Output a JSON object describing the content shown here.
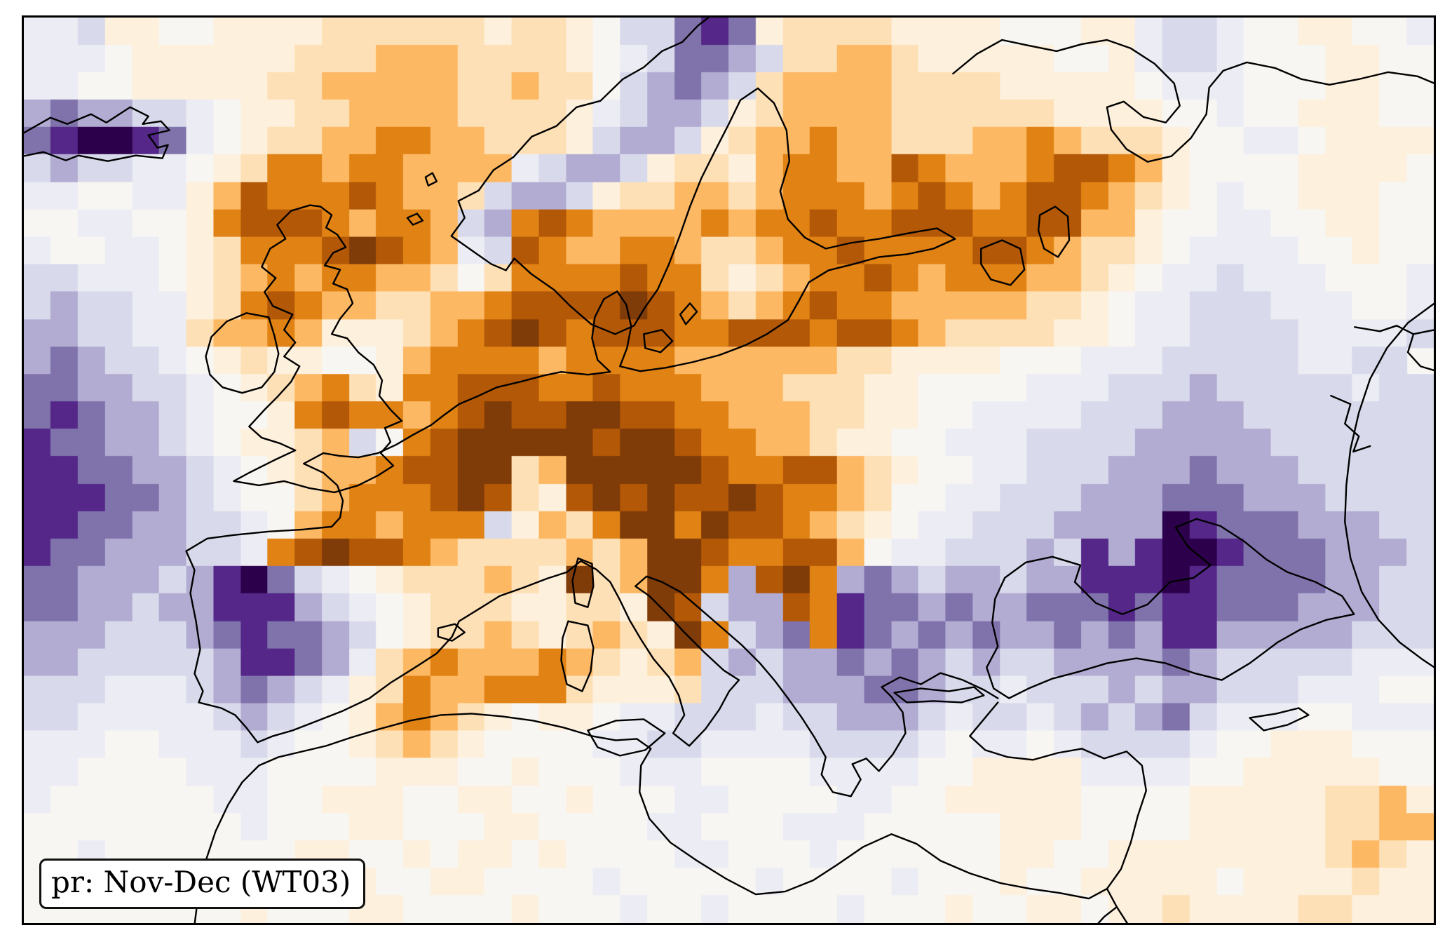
{
  "figure": {
    "label": "pr: Nov-Dec (WT03)"
  },
  "chart_data": {
    "type": "heatmap",
    "title": "pr: Nov-Dec (WT03)",
    "annotation_box": "pr: Nov-Dec (WT03)",
    "grid_cols": 52,
    "grid_rows": 33,
    "legend": "none visible",
    "palette": {
      "a": "#2d004b",
      "b": "#542788",
      "c": "#8073ac",
      "d": "#b2abd2",
      "e": "#d8daeb",
      "f": "#ececf4",
      "g": "#f8f6f3",
      "h": "#fdf0dd",
      "i": "#fee0b6",
      "j": "#fdb863",
      "k": "#e08214",
      "l": "#b35806",
      "m": "#7f3b08"
    },
    "cells": [
      "ffehhgghhhhiiiiiihiihgeecbchiiiihhhhggghhfeefgghhggf",
      "fffghhhhhhiiijjjiiiihgfeccdeiijjihhhhhgghfeefggghhgg",
      "ffgghhhhhiijjjjjiijiigedcdeijjjjiiiihhhhhgfffggghhgg",
      "dcddeefghhiijjjjiiiihfeddehijjjjiiiiiihhhhggfgghhhgg",
      "cbaabcfghiijjkkjjiiiheddehijjkjjiiijjkjiiihggffghhhh",
      "edeeffghikkjkkjjjjfeddehiihjkkjjlkjjjkllkjhgggghhhhg",
      "ffggffhjlkkklkjjieddehiijjijkkkjklkjkllkjihgfgghhhgg",
      "ggffgghklllkjkkjedklkjjjjkjkklkklllkklljjhggffgghhgg",
      "fggffghikkklmlkjfelkjjkkjiijkklkkkkllkjiihgffffgghgg",
      "eefffghijkjkkjjigikkkklkkihijkklkjkkkjjihgffefffgggf",
      "edeeffhiklkjjiijjkllllmlkjijklkkjjjjjiihgffeeefffggf",
      "ddeeffijjkjhhhijklmlklllkklllkllkjiiiihhgffeeeeffffe",
      "dcdeefghihhgghjkkkkjkkkkjjjjjjiihhhhgggfffeeeeeffee",
      "ccddeefghijkihkklllkklkkkjjjiiihhggggfffeeedeeeeefee",
      "cbcddefgghklkkjklmllmmllkkjjjiihhggffffeeedddeeeeeee",
      "bccddefghhijegklmmmmmlmmlkkjjihhggfffeeeedddddeeeeee",
      "bbccddefghijjkllmmijmmmmmlkklljihggffeeedddcdddeeeee",
      "bbbccdefggijkkklmlihlmlmllmlkkjiggffeeedddcccdddeeee",
      "bbccddeefgjkkjkkkehjikmmkmllkjihgffeeeddddabcccdddee",
      "bccdddeefklmllkjiiiijijmmlkklljgffeeedebdbaabcccddde",
      "ccdddedbacefghiiijihmijmmkdlmkdcdeddeddbbbabccccddee",
      "ccddeddbbbdefghiiihhiihmleddlkbccdcddcccbcbbcccdddee",
      "dddeeedcbccdeghiijihijihmkedckbcdcdcddcdcdbbdddddeee",
      "ddeeeeedbbcdfijkjjjkjihijededdcdcdedeeddddcdeeeeefff",
      "eeefffedcdefhikjjkkkihhhieeedddccdeefeeededdeeefffgg",
      "eefffffedefghjkjihghhgffeeefeedddefeefededcefffggfff",
      "fffggfffefgghijihggggffeeffffeeeefgffgfeeeefgghhhggg",
      "ffggggfffgggghhhgghgggfffggggffffgghhhhffffgghhhhhgg",
      "fggggggffgghhhgghhgghgggffggggffgghhhhhgggghhhhhiijh",
      "ggggggggfggghhggghhggggffgggfffggggghhhgggghhhhhiijji",
      "ggfggggggghhgghghhghggggffgggfgggggghhgghhhhhhhhijih",
      "ggggfgghggghhgghhggggfgggggfggggfggghgghhhhhghhhhihh",
      "gggggggghggghhgggghgggfggfggggfggghgghhghhihhhhiihhh"
    ]
  },
  "map": {
    "region": "Europe / North Africa / Middle East",
    "coastlines": [
      "M -6 168 L 38 143 L 62 152 L 96 138 L 118 150 L 152 128 L 178 141 L 170 152 L 196 148 L 208 161 L 178 168 L 191 186 L 206 182 L 198 201 L 160 197 L 120 205 L 78 197 L 60 204 L 28 192 L -6 199",
      "M 668 352 L 638 331 L 611 312 L 630 286 L 621 262 L 650 247 L 671 218 L 700 199 L 726 170 L 761 155 L 790 128 L 824 119 L 856 88 L 886 71 L 912 48 L 941 35 L 963 12 L 986 -6",
      "M 668 352 L 689 361 L 701 344 L 725 366 L 758 389 L 781 412 L 811 438 L 845 452 L 872 440 L 887 415 L 906 388 L 922 352 L 938 310 L 952 270 L 968 230 L 988 190 L 1008 151 L 1024 118 L 1049 101 L 1072 122 L 1090 161 L 1094 205 L 1081 248 L 1092 288 L 1116 314 L 1146 330 L 1181 322 L 1222 316 L 1264 308 L 1305 301 L 1331 316 L 1300 330 L 1262 338 L 1222 342 L 1186 352 L 1150 361 L 1122 378 L 1108 404 L 1092 432 L 1062 452 L 1031 468 L 994 482 L 956 492 L 918 500 L 881 505 L 852 498 L 862 472 L 868 441 L 861 410 L 848 391 L 829 402 L 816 428 L 812 458 L 820 489 L 838 506 L 806 510 L 768 506 L 744 511 L 710 520 L 676 528 L 648 541 L 622 552 L 600 568 L 582 582 L 556 596 L 532 610 L 506 622 L 478 628 L 452 626 L 428 622 L 400 637 L 428 650 L 448 668 L 456 690 L 452 714 L 440 727 L 400 731 L 350 734 L 300 739 L 262 744 L 232 762 L 244 789 L 238 822 L 246 862 L 252 902 L 244 937 L 256 962 L 250 978 L 282 986 L 302 996 L 318 1014 L 334 1035 L 356 1026 L 384 1018 L 420 1004 L 456 990 L 494 972 L 524 950 L 556 930 L 590 908 L 612 884 L 622 862 L 648 846 L 680 826 L 714 814 L 748 801 L 776 792 L 796 776 L 818 788 L 838 806 L 852 832 L 866 861 L 882 888 L 900 916 L 922 942 L 936 968 L 944 996 L 928 1022 L 951 1040 L 974 1016 L 994 988 L 1008 962 L 1022 946 L 1000 932 L 972 906 L 944 878 L 918 850 L 894 826 L 874 812 L 890 798 L 912 806 L 938 820 L 966 844 L 996 870 L 1026 896 L 1052 922 L 1074 948 L 1092 972 L 1112 1000 L 1130 1028 L 1146 1056 L 1140 1081 L 1156 1106 L 1182 1112 L 1196 1088 L 1184 1066 L 1204 1058 L 1222 1076 L 1242 1052 L 1260 1022 L 1256 992 L 1240 970 L 1226 956 L 1252 942 L 1282 952 L 1310 936 L 1342 946 L 1372 960 L 1392 972",
      "M 1408 972 L 1436 958 L 1470 944 L 1508 934 L 1548 922 L 1590 915 L 1632 922 L 1672 936 L 1712 946 L 1752 922 L 1792 892 L 1824 874 L 1862 860 L 1901 852 L 1884 826 L 1846 806 L 1806 792 L 1776 774 L 1744 748 L 1710 726 L 1676 716 L 1646 728 L 1664 756 L 1696 782 L 1672 800 L 1638 806 L 1606 838 L 1570 852 L 1532 836 L 1502 806 L 1510 782 L 1470 770 L 1432 778 L 1402 800 L 1388 830 L 1384 864 L 1392 898 L 1376 928 L 1386 958 L 1408 972",
      "M 1392 978 L 1372 1002 L 1352 1026 L 1374 1046 L 1406 1056 L 1442 1060 L 1478 1050 L 1512 1044 L 1544 1058 L 1576 1048 L 1598 1068 L 1604 1104 L 1592 1140 L 1582 1178 L 1568 1216 L 1548 1244 L 1522 1258 L 1480 1250 L 1438 1244 L 1396 1236 L 1352 1222 L 1310 1204 L 1276 1180 L 1240 1166 L 1200 1184 L 1162 1210 L 1128 1232 L 1088 1248 L 1046 1252 L 1004 1230 L 962 1204 L 924 1178 L 894 1144 L 880 1106 L 882 1068 L 896 1044 L 876 1030 L 846 1032 L 812 1026 L 772 1014 L 728 1004 L 684 998 L 640 994 L 596 996 L 552 1004 L 508 1016 L 468 1028 L 432 1040 L 398 1048 L 364 1056 L 336 1068 L 312 1092 L 292 1124 L 274 1162 L 260 1204 L 250 1248 L 244 1295",
      "M 1548 1244 L 1562 1270 L 1578 1295 M 1562 1270 L 1544 1284 L 1534 1295",
      "M 409 268 L 382 276 L 362 296 L 374 316 L 352 330 L 340 356 L 360 372 L 344 392 L 356 412 L 384 424 L 372 446 L 388 464 L 372 484 L 394 498 L 382 520 L 362 542 L 344 560 L 322 584 L 340 600 L 366 608 L 388 618 L 358 632 L 322 650 L 300 662 L 336 668 L 372 662 L 408 672 L 444 678 L 478 668 L 506 654 L 528 640 L 510 622 L 524 606 L 516 586 L 540 576 L 524 560 L 508 540 L 512 518 L 500 496 L 478 478 L 462 458 L 440 452 L 452 430 L 470 408 L 462 388 L 442 380 L 452 360 L 430 354 L 442 336 L 460 328 L 448 310 L 432 300 L 440 282 L 424 270 L 409 268",
      "M 350 428 L 318 422 L 290 434 L 268 456 L 260 484 L 266 510 L 284 528 L 312 536 L 340 528 L 358 506 L 364 480 L 358 454 L 350 428",
      "M 806 1018 L 846 1004 L 886 1002 L 916 1022 L 888 1046 L 852 1054 L 820 1042 L 806 1018",
      "M 778 862 L 806 868 L 814 900 L 810 934 L 798 962 L 776 952 L 768 918 L 770 886 L 778 862",
      "M 792 772 L 812 780 L 814 812 L 806 842 L 788 836 L 784 804 L 792 772",
      "M 1244 964 L 1282 958 L 1322 962 L 1358 956 L 1372 968 L 1340 978 L 1300 976 L 1262 978 L 1244 964",
      "M 1752 1000 L 1790 994 L 1822 986 L 1836 996 L 1806 1010 L 1772 1018 L 1752 1000",
      "M 592 872 L 616 866 L 630 878 L 612 890 L 592 884 L 592 872",
      "M 2016 408 L 1978 436 L 1948 472 L 1924 516 L 1908 564 L 1896 616 L 1890 668 L 1888 720 L 1896 772 L 1912 820 L 1936 860 L 1966 892 L 1998 916 L 2016 928",
      "M 1328 80 L 1362 52 L 1398 32 L 1436 40 L 1476 48 L 1512 38 L 1548 32 L 1582 44 L 1616 66 L 1644 94 L 1652 126 L 1632 150 L 1600 142 L 1572 120 L 1548 128 L 1554 160 L 1576 188 L 1606 206 L 1640 198 L 1668 172 L 1690 138 L 1694 100 L 1714 76 L 1748 64 L 1788 72 L 1826 88 L 1866 96 L 1908 88 L 1950 78 L 1992 84 L 2016 94",
      "M 1368 330 L 1398 318 L 1424 330 L 1430 360 L 1410 382 L 1382 374 L 1368 352 Z",
      "M 1452 282 L 1474 270 L 1492 284 L 1494 318 L 1478 342 L 1458 330 L 1450 304 Z",
      "M 548 286 L 562 280 L 570 290 L 556 296 Z",
      "M 574 228 L 584 222 L 590 234 L 578 240 Z",
      "M 938 424 L 952 408 L 962 420 L 946 438 Z",
      "M 886 452 L 912 446 L 927 462 L 910 478 L 888 472 Z",
      "M 1902 442 L 1938 448 L 1962 440 L 1986 452 L 2016 446 M 1986 452 L 1978 478 L 1996 498 L 2016 504",
      "M 1868 540 L 1896 552 L 1888 580 L 1908 598 L 1900 620 L 1924 612"
    ]
  }
}
